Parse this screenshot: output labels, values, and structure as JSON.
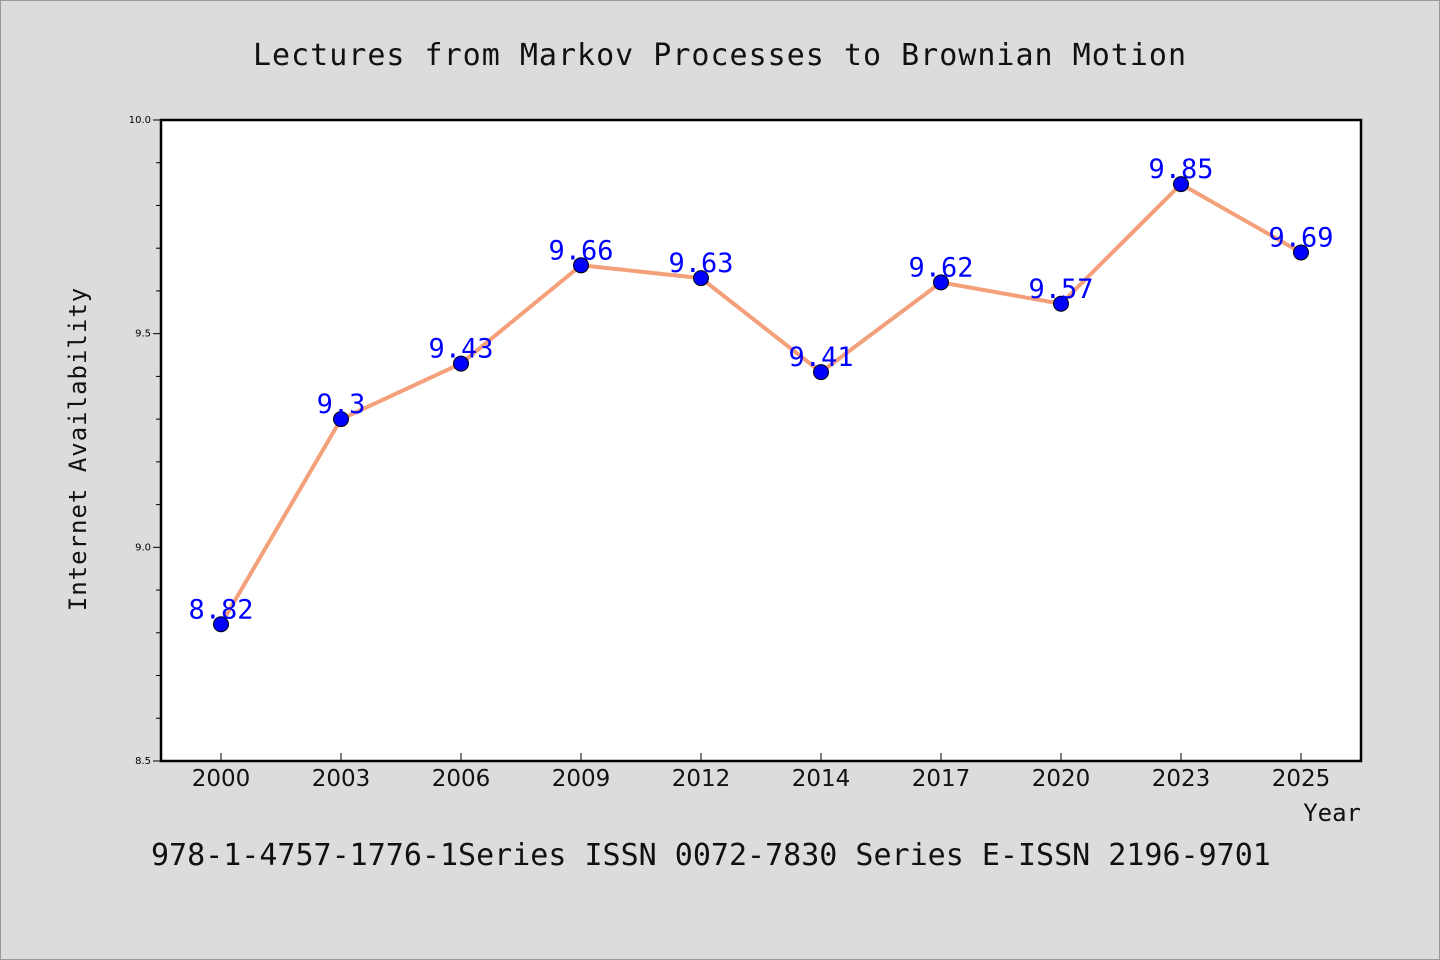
{
  "chart_data": {
    "type": "line",
    "title": "Lectures from Markov Processes to Brownian Motion",
    "xlabel": "Year",
    "ylabel": "Internet Availability",
    "categories": [
      "2000",
      "2003",
      "2006",
      "2009",
      "2012",
      "2014",
      "2017",
      "2020",
      "2023",
      "2025"
    ],
    "values": [
      8.82,
      9.3,
      9.43,
      9.66,
      9.63,
      9.41,
      9.62,
      9.57,
      9.85,
      9.69
    ],
    "data_labels": [
      "8.82",
      "9.3",
      "9.43",
      "9.66",
      "9.63",
      "9.41",
      "9.62",
      "9.57",
      "9.85",
      "9.69"
    ],
    "ylim": [
      8.5,
      10.0
    ],
    "y_ticks": [
      "8.5",
      "9.0",
      "9.5",
      "10.0"
    ],
    "grid": false,
    "legend": "none",
    "colors": {
      "line": "#f4a07a",
      "marker": "#0000ff",
      "data_label": "#0000ff",
      "background": "#dcdcdc",
      "plot_background": "#ffffff"
    }
  },
  "footer": {
    "text": "978-1-4757-1776-1Series ISSN 0072-7830 Series E-ISSN 2196-9701"
  }
}
